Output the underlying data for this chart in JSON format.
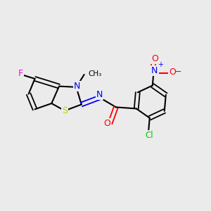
{
  "background_color": "#ebebeb",
  "bond_color": "#000000",
  "atom_colors": {
    "F": "#ff00ff",
    "N": "#0000ff",
    "S": "#cccc00",
    "O": "#ff0000",
    "Cl": "#00cc00",
    "C": "#000000"
  }
}
